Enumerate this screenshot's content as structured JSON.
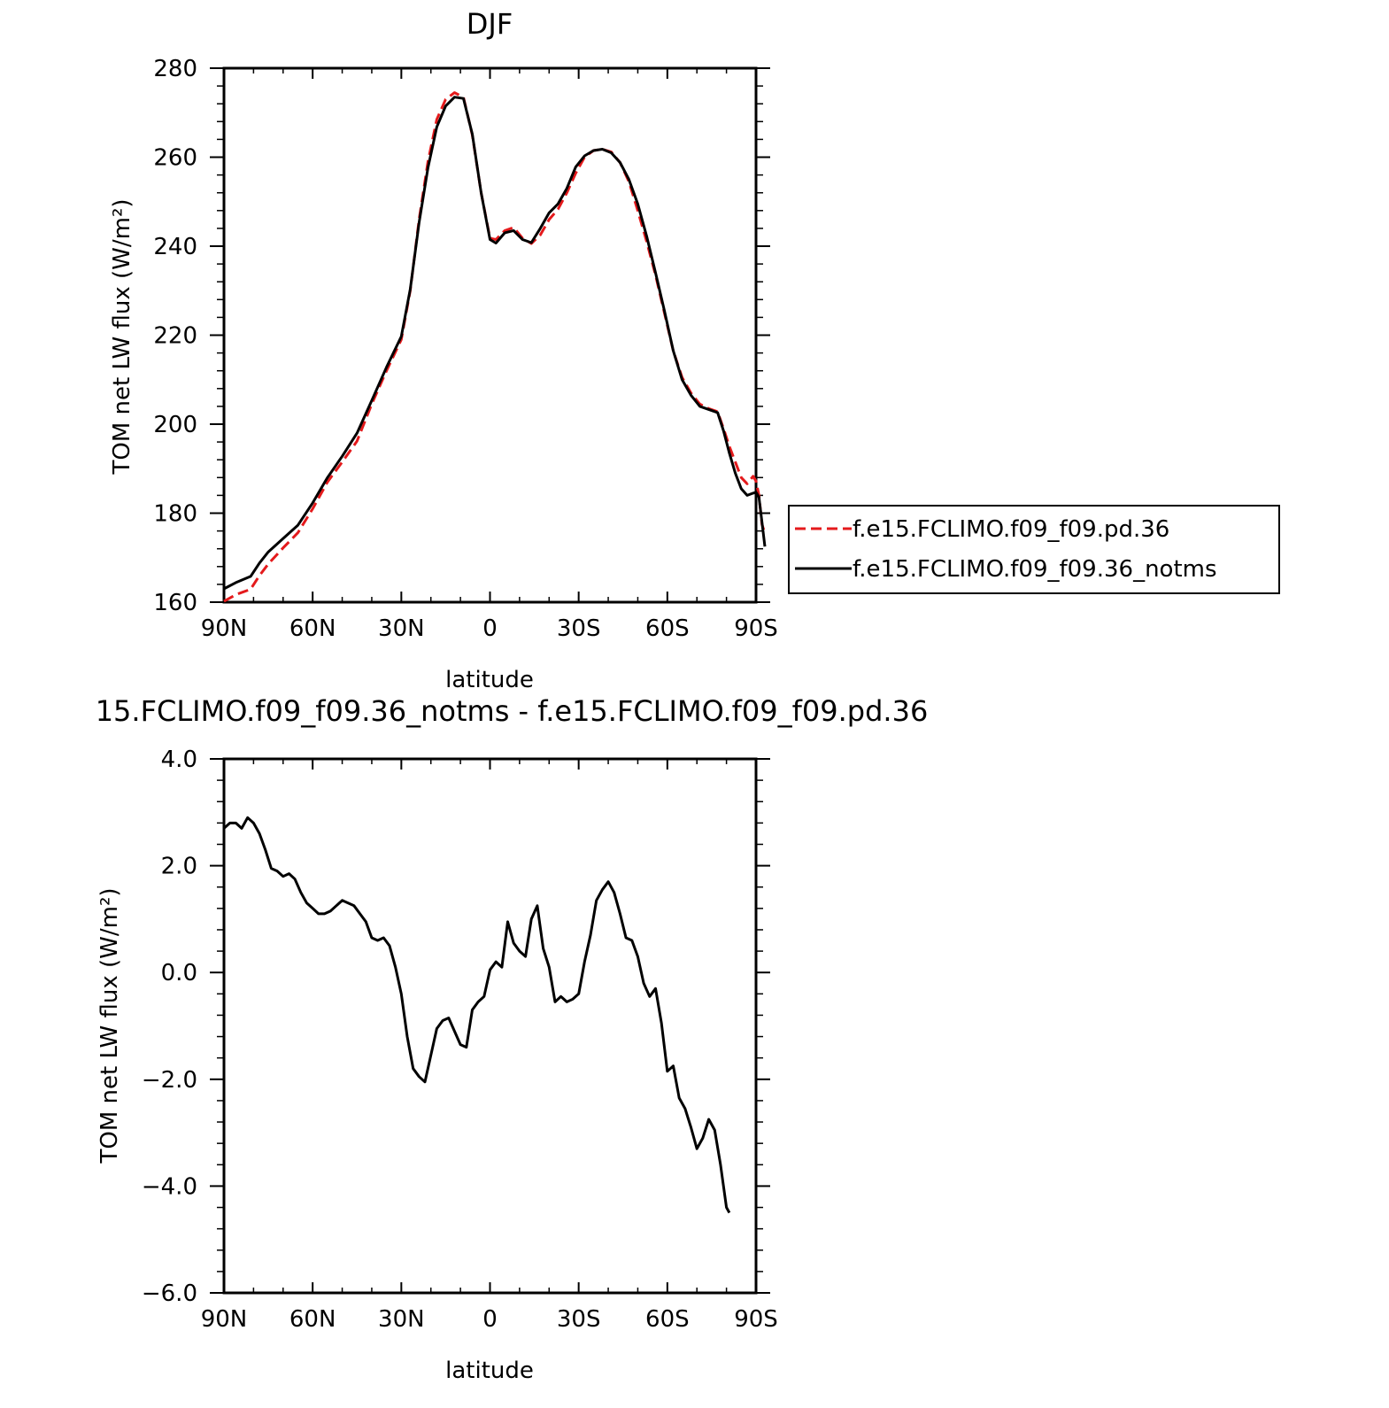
{
  "chart_data": [
    {
      "type": "line",
      "title": "DJF",
      "xlabel": "latitude",
      "ylabel": "TOM net LW flux (W/m²)",
      "xlim": [
        90,
        -90
      ],
      "ylim": [
        160,
        280
      ],
      "x_ticks": [
        90,
        60,
        30,
        0,
        -30,
        -60,
        -90
      ],
      "x_tick_labels": [
        "90N",
        "60N",
        "30N",
        "0",
        "30S",
        "60S",
        "90S"
      ],
      "y_ticks": [
        160,
        180,
        200,
        220,
        240,
        260,
        280
      ],
      "y_tick_labels": [
        "160",
        "180",
        "200",
        "220",
        "240",
        "260",
        "280"
      ],
      "grid": false,
      "legend_position": "right",
      "series": [
        {
          "name": "f.e15.FCLIMO.f09_f09.pd.36",
          "color": "#e41a1c",
          "dash": "dashed",
          "points": [
            [
              90,
              160.2
            ],
            [
              86,
              161.7
            ],
            [
              81,
              162.9
            ],
            [
              78,
              166
            ],
            [
              75,
              168.6
            ],
            [
              70,
              172.2
            ],
            [
              65,
              175.6
            ],
            [
              60,
              181
            ],
            [
              55,
              187
            ],
            [
              50,
              191.5
            ],
            [
              45,
              196.2
            ],
            [
              40,
              204.5
            ],
            [
              35,
              212
            ],
            [
              30,
              219
            ],
            [
              27,
              230
            ],
            [
              24,
              246
            ],
            [
              21,
              259
            ],
            [
              18,
              268.5
            ],
            [
              15,
              273
            ],
            [
              12,
              274.5
            ],
            [
              9,
              273.5
            ],
            [
              6,
              265
            ],
            [
              3,
              252
            ],
            [
              0,
              241.8
            ],
            [
              -2,
              241.5
            ],
            [
              -5,
              243.5
            ],
            [
              -8,
              244.2
            ],
            [
              -11,
              241.8
            ],
            [
              -14,
              240.6
            ],
            [
              -17,
              242.5
            ],
            [
              -20,
              246
            ],
            [
              -23,
              248.3
            ],
            [
              -26,
              252
            ],
            [
              -29,
              256.4
            ],
            [
              -32,
              260
            ],
            [
              -35,
              261.5
            ],
            [
              -38,
              261.8
            ],
            [
              -41,
              261.2
            ],
            [
              -44,
              258.8
            ],
            [
              -47,
              254.5
            ],
            [
              -50,
              248
            ],
            [
              -53,
              241
            ],
            [
              -56,
              233.5
            ],
            [
              -59,
              225
            ],
            [
              -62,
              216.5
            ],
            [
              -65,
              210.5
            ],
            [
              -68,
              207
            ],
            [
              -71,
              204.5
            ],
            [
              -74,
              203.5
            ],
            [
              -77,
              202.8
            ],
            [
              -79,
              199
            ],
            [
              -81,
              195
            ],
            [
              -83,
              191.5
            ],
            [
              -85,
              188
            ],
            [
              -87,
              186.6
            ],
            [
              -89,
              188.3
            ],
            [
              -90,
              187.2
            ],
            [
              -91,
              184
            ],
            [
              -92,
              177.5
            ],
            [
              -93,
              175.5
            ]
          ]
        },
        {
          "name": "f.e15.FCLIMO.f09_f09.36_notms",
          "color": "#000000",
          "dash": "solid",
          "points": [
            [
              90,
              163
            ],
            [
              86,
              164.4
            ],
            [
              81,
              165.8
            ],
            [
              78,
              168.8
            ],
            [
              75,
              171.3
            ],
            [
              70,
              174.3
            ],
            [
              65,
              177.3
            ],
            [
              60,
              182.3
            ],
            [
              55,
              188
            ],
            [
              50,
              192.8
            ],
            [
              45,
              198
            ],
            [
              40,
              205.3
            ],
            [
              35,
              212.8
            ],
            [
              30,
              219.7
            ],
            [
              27,
              230.3
            ],
            [
              24,
              245.3
            ],
            [
              21,
              257.6
            ],
            [
              18,
              266.8
            ],
            [
              15,
              271.5
            ],
            [
              12,
              273.5
            ],
            [
              9,
              273.2
            ],
            [
              6,
              265.2
            ],
            [
              3,
              252
            ],
            [
              0,
              241.5
            ],
            [
              -2,
              240.7
            ],
            [
              -5,
              243
            ],
            [
              -8,
              243.5
            ],
            [
              -11,
              241.5
            ],
            [
              -14,
              240.8
            ],
            [
              -17,
              244
            ],
            [
              -20,
              247.5
            ],
            [
              -23,
              249.5
            ],
            [
              -26,
              253
            ],
            [
              -29,
              257.8
            ],
            [
              -32,
              260.3
            ],
            [
              -35,
              261.5
            ],
            [
              -38,
              261.8
            ],
            [
              -41,
              261
            ],
            [
              -44,
              258.8
            ],
            [
              -47,
              255
            ],
            [
              -50,
              249.5
            ],
            [
              -53,
              242.2
            ],
            [
              -56,
              234
            ],
            [
              -59,
              225.5
            ],
            [
              -62,
              216.5
            ],
            [
              -65,
              210
            ],
            [
              -68,
              206.5
            ],
            [
              -71,
              204
            ],
            [
              -74,
              203.3
            ],
            [
              -77,
              202.6
            ],
            [
              -79,
              198.5
            ],
            [
              -81,
              193.5
            ],
            [
              -83,
              189
            ],
            [
              -85,
              185.5
            ],
            [
              -87,
              184
            ],
            [
              -89,
              184.5
            ],
            [
              -90,
              184.7
            ],
            [
              -91,
              183.6
            ],
            [
              -92,
              178
            ],
            [
              -93,
              172.5
            ]
          ]
        }
      ]
    },
    {
      "type": "line",
      "title": "15.FCLIMO.f09_f09.36_notms - f.e15.FCLIMO.f09_f09.pd.36",
      "xlabel": "latitude",
      "ylabel": "TOM net LW flux (W/m²)",
      "xlim": [
        90,
        -90
      ],
      "ylim": [
        -6,
        4
      ],
      "x_ticks": [
        90,
        60,
        30,
        0,
        -30,
        -60,
        -90
      ],
      "x_tick_labels": [
        "90N",
        "60N",
        "30N",
        "0",
        "30S",
        "60S",
        "90S"
      ],
      "y_ticks": [
        -6,
        -4,
        -2,
        0,
        2,
        4
      ],
      "y_tick_labels": [
        "−6.0",
        "−4.0",
        "−2.0",
        "0.0",
        "2.0",
        "4.0"
      ],
      "grid": false,
      "series": [
        {
          "color": "#000000",
          "dash": "solid",
          "points": [
            [
              90,
              2.7
            ],
            [
              88,
              2.8
            ],
            [
              86,
              2.8
            ],
            [
              84,
              2.7
            ],
            [
              82,
              2.9
            ],
            [
              80,
              2.8
            ],
            [
              78,
              2.6
            ],
            [
              76,
              2.3
            ],
            [
              74,
              1.95
            ],
            [
              72,
              1.9
            ],
            [
              70,
              1.8
            ],
            [
              68,
              1.85
            ],
            [
              66,
              1.75
            ],
            [
              64,
              1.5
            ],
            [
              62,
              1.3
            ],
            [
              60,
              1.2
            ],
            [
              58,
              1.1
            ],
            [
              56,
              1.1
            ],
            [
              54,
              1.15
            ],
            [
              52,
              1.25
            ],
            [
              50,
              1.35
            ],
            [
              48,
              1.3
            ],
            [
              46,
              1.25
            ],
            [
              44,
              1.1
            ],
            [
              42,
              0.95
            ],
            [
              40,
              0.65
            ],
            [
              38,
              0.6
            ],
            [
              36,
              0.65
            ],
            [
              34,
              0.5
            ],
            [
              32,
              0.1
            ],
            [
              30,
              -0.4
            ],
            [
              28,
              -1.2
            ],
            [
              26,
              -1.8
            ],
            [
              24,
              -1.95
            ],
            [
              22,
              -2.05
            ],
            [
              20,
              -1.55
            ],
            [
              18,
              -1.05
            ],
            [
              16,
              -0.9
            ],
            [
              14,
              -0.85
            ],
            [
              12,
              -1.1
            ],
            [
              10,
              -1.35
            ],
            [
              8,
              -1.4
            ],
            [
              6,
              -0.7
            ],
            [
              4,
              -0.55
            ],
            [
              2,
              -0.45
            ],
            [
              0,
              0.05
            ],
            [
              -2,
              0.2
            ],
            [
              -4,
              0.1
            ],
            [
              -6,
              0.95
            ],
            [
              -8,
              0.55
            ],
            [
              -10,
              0.4
            ],
            [
              -12,
              0.3
            ],
            [
              -14,
              1.0
            ],
            [
              -16,
              1.25
            ],
            [
              -18,
              0.45
            ],
            [
              -20,
              0.1
            ],
            [
              -22,
              -0.55
            ],
            [
              -24,
              -0.45
            ],
            [
              -26,
              -0.55
            ],
            [
              -28,
              -0.5
            ],
            [
              -30,
              -0.4
            ],
            [
              -32,
              0.2
            ],
            [
              -34,
              0.7
            ],
            [
              -36,
              1.35
            ],
            [
              -38,
              1.55
            ],
            [
              -40,
              1.7
            ],
            [
              -42,
              1.5
            ],
            [
              -44,
              1.1
            ],
            [
              -46,
              0.65
            ],
            [
              -48,
              0.6
            ],
            [
              -50,
              0.3
            ],
            [
              -52,
              -0.2
            ],
            [
              -54,
              -0.45
            ],
            [
              -56,
              -0.3
            ],
            [
              -58,
              -0.95
            ],
            [
              -60,
              -1.85
            ],
            [
              -62,
              -1.75
            ],
            [
              -64,
              -2.35
            ],
            [
              -66,
              -2.55
            ],
            [
              -68,
              -2.9
            ],
            [
              -70,
              -3.3
            ],
            [
              -72,
              -3.1
            ],
            [
              -74,
              -2.75
            ],
            [
              -76,
              -2.95
            ],
            [
              -78,
              -3.6
            ],
            [
              -80,
              -4.4
            ],
            [
              -81,
              -4.5
            ]
          ]
        }
      ]
    }
  ]
}
